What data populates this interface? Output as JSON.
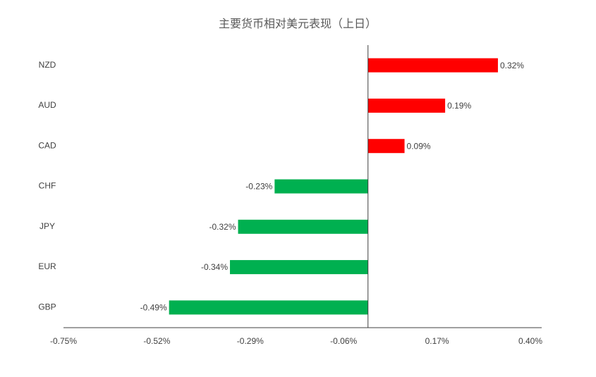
{
  "chart_data": {
    "type": "hbar",
    "title": "主要货币相对美元表现（上日）",
    "categories": [
      "NZD",
      "AUD",
      "CAD",
      "CHF",
      "JPY",
      "EUR",
      "GBP"
    ],
    "values": [
      0.32,
      0.19,
      0.09,
      -0.23,
      -0.32,
      -0.34,
      -0.49
    ],
    "value_labels": [
      "0.32%",
      "0.19%",
      "0.09%",
      "-0.23%",
      "-0.32%",
      "-0.34%",
      "-0.49%"
    ],
    "positive_color": "#ff0000",
    "negative_color": "#00b050",
    "xlim": [
      -0.75,
      0.4
    ],
    "xticks": [
      {
        "value": -0.75,
        "label": "-0.75%"
      },
      {
        "value": -0.52,
        "label": "-0.52%"
      },
      {
        "value": -0.29,
        "label": "-0.29%"
      },
      {
        "value": -0.06,
        "label": "-0.06%"
      },
      {
        "value": 0.17,
        "label": "0.17%"
      },
      {
        "value": 0.4,
        "label": "0.40%"
      }
    ],
    "grid": false
  }
}
